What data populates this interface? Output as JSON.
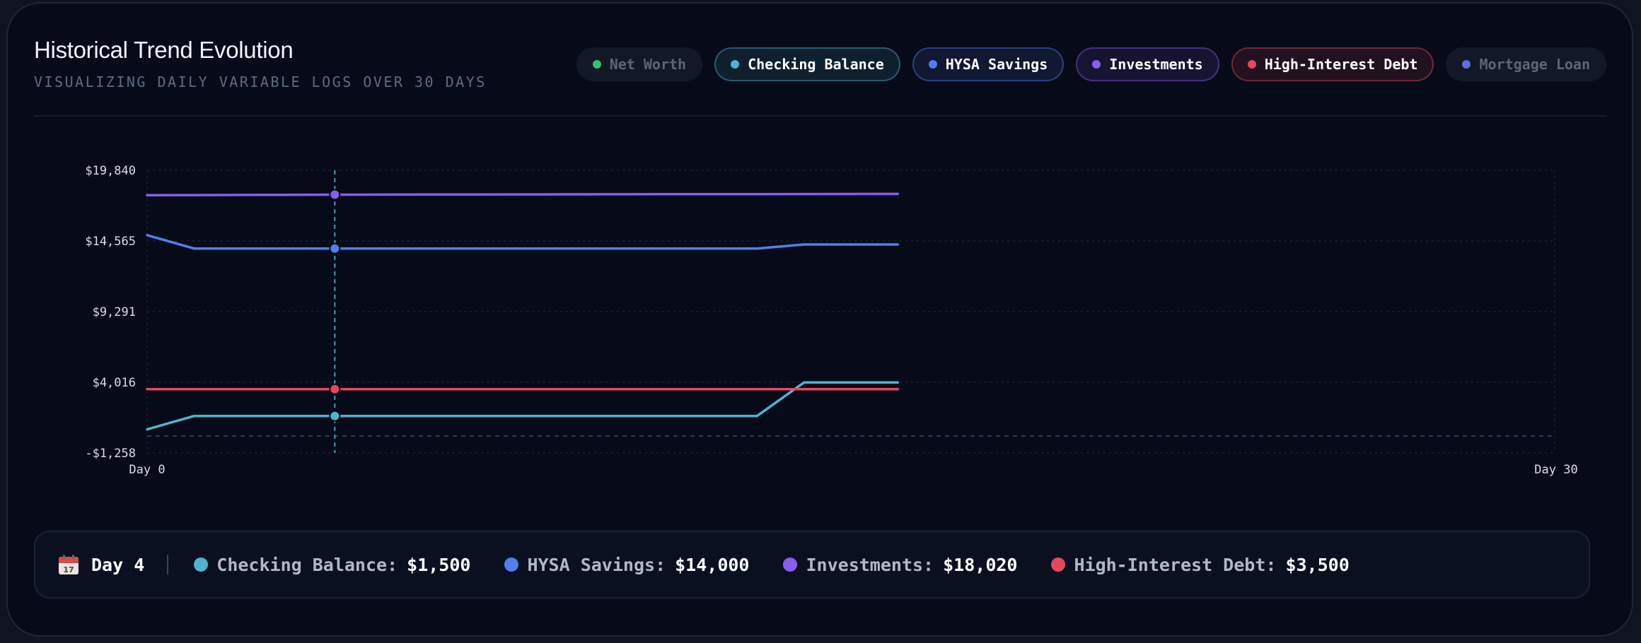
{
  "header": {
    "title": "Historical Trend Evolution",
    "subtitle": "VISUALIZING DAILY VARIABLE LOGS OVER 30 DAYS"
  },
  "legend": [
    {
      "label": "Net Worth",
      "color": "#34c16b",
      "active": false
    },
    {
      "label": "Checking Balance",
      "color": "#4fb3cf",
      "active": true
    },
    {
      "label": "HYSA Savings",
      "color": "#4f7ff0",
      "active": true
    },
    {
      "label": "Investments",
      "color": "#8b5cf0",
      "active": true
    },
    {
      "label": "High-Interest Debt",
      "color": "#e5485d",
      "active": true
    },
    {
      "label": "Mortgage Loan",
      "color": "#5d6ee0",
      "active": false
    }
  ],
  "chart_data": {
    "type": "line",
    "x_start_label": "Day 0",
    "x_end_label": "Day 30",
    "xlim": [
      0,
      30
    ],
    "ylim": [
      -1258,
      19840
    ],
    "yticks": [
      -1258,
      4016,
      9291,
      14565,
      19840
    ],
    "ytick_labels": [
      "-$1,258",
      "$4,016",
      "$9,291",
      "$14,565",
      "$19,840"
    ],
    "grid": true,
    "zero_line": true,
    "x": [
      0,
      1,
      2,
      3,
      4,
      5,
      6,
      7,
      8,
      9,
      10,
      11,
      12,
      13,
      14,
      15,
      16
    ],
    "series": [
      {
        "name": "Checking Balance",
        "color": "#4fb3cf",
        "values": [
          500,
          1500,
          1500,
          1500,
          1500,
          1500,
          1500,
          1500,
          1500,
          1500,
          1500,
          1500,
          1500,
          1500,
          4000,
          4000,
          4000
        ]
      },
      {
        "name": "HYSA Savings",
        "color": "#4f7ff0",
        "values": [
          15000,
          14000,
          14000,
          14000,
          14000,
          14000,
          14000,
          14000,
          14000,
          14000,
          14000,
          14000,
          14000,
          14000,
          14300,
          14300,
          14300
        ]
      },
      {
        "name": "Investments",
        "color": "#8b5cf0",
        "values": [
          17980,
          17990,
          18000,
          18010,
          18020,
          18025,
          18030,
          18035,
          18040,
          18045,
          18050,
          18055,
          18060,
          18065,
          18070,
          18075,
          18080
        ]
      },
      {
        "name": "High-Interest Debt",
        "color": "#e5485d",
        "values": [
          3500,
          3500,
          3500,
          3500,
          3500,
          3500,
          3500,
          3500,
          3500,
          3500,
          3500,
          3500,
          3500,
          3500,
          3500,
          3500,
          3500
        ]
      }
    ],
    "hover_index": 4
  },
  "info": {
    "day_label": "Day 4",
    "items": [
      {
        "label": "Checking Balance:",
        "value": "$1,500",
        "color": "#4fb3cf"
      },
      {
        "label": "HYSA Savings:",
        "value": "$14,000",
        "color": "#4f7ff0"
      },
      {
        "label": "Investments:",
        "value": "$18,020",
        "color": "#8b5cf0"
      },
      {
        "label": "High-Interest Debt:",
        "value": "$3,500",
        "color": "#e5485d"
      }
    ]
  }
}
